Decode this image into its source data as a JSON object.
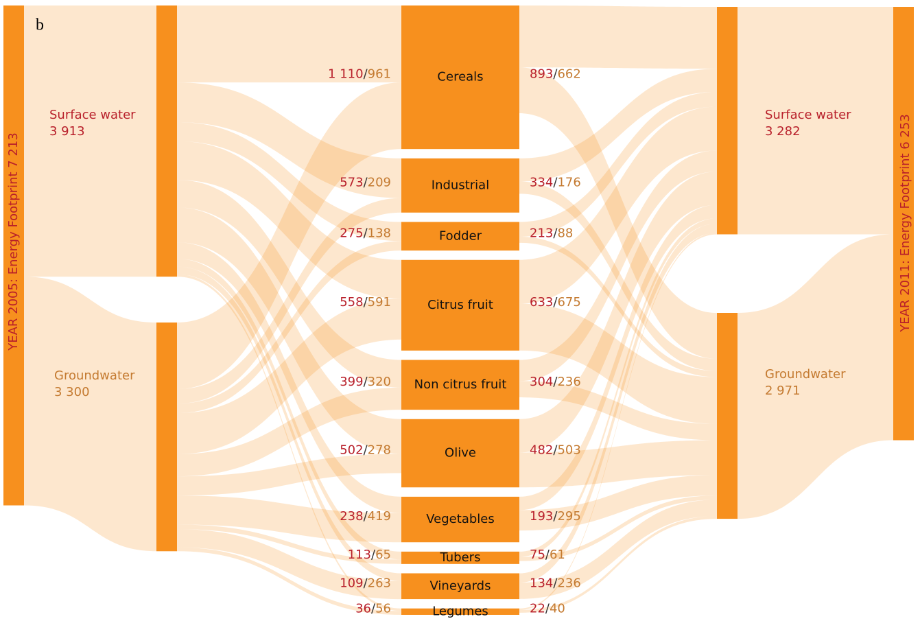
{
  "chart_data": {
    "type": "sankey",
    "panel_label": "b",
    "separator": "/",
    "title_2005": "YEAR 2005: Energy Footprint 7 213",
    "title_2011": "YEAR 2011: Energy Footprint 6 253",
    "categories": [
      "Cereals",
      "Industrial",
      "Fodder",
      "Citrus fruit",
      "Non citrus fruit",
      "Olive",
      "Vegetables",
      "Tubers",
      "Vineyards",
      "Legumes"
    ],
    "sources": [
      {
        "name": "Surface water",
        "color": "#b81f2a"
      },
      {
        "name": "Groundwater",
        "color": "#c47a30"
      }
    ],
    "left_nodes": {
      "values": [
        3913,
        3300
      ],
      "value_labels": [
        "3 913",
        "3 300"
      ]
    },
    "right_nodes": {
      "values": [
        3282,
        2971
      ],
      "value_labels": [
        "3 282",
        "2 971"
      ]
    },
    "flows_2005": [
      {
        "values": [
          1110,
          573,
          275,
          558,
          399,
          502,
          238,
          113,
          109,
          36
        ],
        "value_labels": [
          "1 110",
          "573",
          "275",
          "558",
          "399",
          "502",
          "238",
          "113",
          "109",
          "36"
        ]
      },
      {
        "values": [
          961,
          209,
          138,
          591,
          320,
          278,
          419,
          65,
          263,
          56
        ]
      }
    ],
    "flows_2011": [
      {
        "values": [
          893,
          334,
          213,
          633,
          304,
          482,
          193,
          75,
          134,
          22
        ]
      },
      {
        "values": [
          662,
          176,
          88,
          675,
          236,
          503,
          295,
          61,
          236,
          40
        ]
      }
    ],
    "node_color": "#f7901e",
    "flow_color": "#f7901e"
  }
}
